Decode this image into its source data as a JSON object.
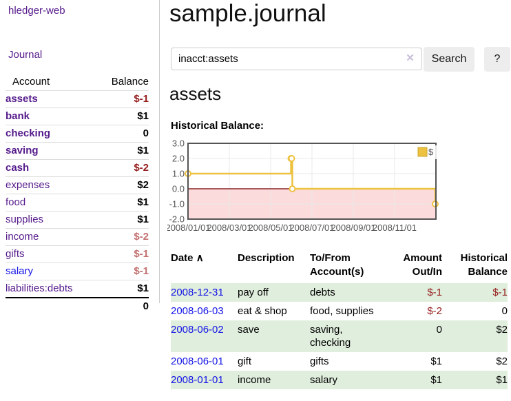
{
  "app": {
    "brand": "hledger-web",
    "nav_journal": "Journal"
  },
  "sidebar": {
    "table": {
      "headers": {
        "account": "Account",
        "balance": "Balance"
      },
      "rows": [
        {
          "account": "assets",
          "indent": 1,
          "bold": true,
          "link": "visited",
          "balance": "$-1",
          "balance_style": "neg-strong"
        },
        {
          "account": "bank",
          "indent": 2,
          "bold": true,
          "link": "visited",
          "balance": "$1",
          "balance_style": "pos"
        },
        {
          "account": "checking",
          "indent": 3,
          "bold": true,
          "link": "visited",
          "balance": "0",
          "balance_style": "pos"
        },
        {
          "account": "saving",
          "indent": 3,
          "bold": true,
          "link": "visited",
          "balance": "$1",
          "balance_style": "pos"
        },
        {
          "account": "cash",
          "indent": 2,
          "bold": true,
          "link": "visited",
          "balance": "$-2",
          "balance_style": "neg-strong"
        },
        {
          "account": "expenses",
          "indent": 1,
          "bold": false,
          "link": "visited",
          "balance": "$2",
          "balance_style": "pos"
        },
        {
          "account": "food",
          "indent": 2,
          "bold": false,
          "link": "visited",
          "balance": "$1",
          "balance_style": "pos"
        },
        {
          "account": "supplies",
          "indent": 2,
          "bold": false,
          "link": "visited",
          "balance": "$1",
          "balance_style": "pos"
        },
        {
          "account": "income",
          "indent": 1,
          "bold": false,
          "link": "visited",
          "balance": "$-2",
          "balance_style": "neg-light"
        },
        {
          "account": "gifts",
          "indent": 2,
          "bold": false,
          "link": "visited",
          "balance": "$-1",
          "balance_style": "neg-light"
        },
        {
          "account": "salary",
          "indent": 2,
          "bold": false,
          "link": "unvisited",
          "balance": "$-1",
          "balance_style": "neg-light"
        },
        {
          "account": "liabilities:debts",
          "indent": 1,
          "bold": false,
          "link": "visited",
          "balance": "$1",
          "balance_style": "pos"
        }
      ],
      "total": "0"
    }
  },
  "header": {
    "title": "sample.journal"
  },
  "search": {
    "value": "inacct:assets",
    "clear_icon": "×",
    "button": "Search",
    "help_button": "?"
  },
  "account_page": {
    "heading": "assets",
    "chart_label": "Historical Balance:"
  },
  "chart_data": {
    "type": "line",
    "title": "Historical Balance:",
    "step": true,
    "series": [
      {
        "name": "$",
        "color": "#edc240",
        "points": [
          [
            "2008-01-01",
            1
          ],
          [
            "2008-06-01",
            2
          ],
          [
            "2008-06-02",
            2
          ],
          [
            "2008-06-03",
            0
          ],
          [
            "2008-12-31",
            -1
          ]
        ]
      }
    ],
    "x_range": [
      "2008-01-01",
      "2009-01-01"
    ],
    "ylim": [
      -2,
      3
    ],
    "y_ticks": [
      3.0,
      2.0,
      1.0,
      0.0,
      -1.0,
      -2.0
    ],
    "x_tick_labels": [
      "2008/01/01",
      "2008/03/01",
      "2008/05/01",
      "2008/07/01",
      "2008/09/01",
      "2008/11/01"
    ],
    "grid": true,
    "legend_position": "top-right",
    "colors": {
      "grid_line": "#e8e8e8",
      "plot_border": "#545454",
      "tick_text": "#545454",
      "negative_region": "#fbdbdb",
      "zero_line": "#8b2424",
      "legend_swatch_border": "#c9a42f"
    }
  },
  "register": {
    "headers": {
      "date": "Date",
      "sort_icon": "∧",
      "description": "Description",
      "account_line1": "To/From",
      "account_line2": "Account(s)",
      "amount_line1": "Amount",
      "amount_line2": "Out/In",
      "balance_line1": "Historical",
      "balance_line2": "Balance"
    },
    "rows": [
      {
        "date": "2008-12-31",
        "description": "pay off",
        "accounts": "debts",
        "amount": "$-1",
        "amount_negative": true,
        "balance": "$-1",
        "balance_negative": true
      },
      {
        "date": "2008-06-03",
        "description": "eat & shop",
        "accounts": "food, supplies",
        "amount": "$-2",
        "amount_negative": true,
        "balance": "0",
        "balance_negative": false
      },
      {
        "date": "2008-06-02",
        "description": "save",
        "accounts": "saving, checking",
        "amount": "0",
        "amount_negative": false,
        "balance": "$2",
        "balance_negative": false
      },
      {
        "date": "2008-06-01",
        "description": "gift",
        "accounts": "gifts",
        "amount": "$1",
        "amount_negative": false,
        "balance": "$2",
        "balance_negative": false
      },
      {
        "date": "2008-01-01",
        "description": "income",
        "accounts": "salary",
        "amount": "$1",
        "amount_negative": false,
        "balance": "$1",
        "balance_negative": false
      }
    ]
  }
}
